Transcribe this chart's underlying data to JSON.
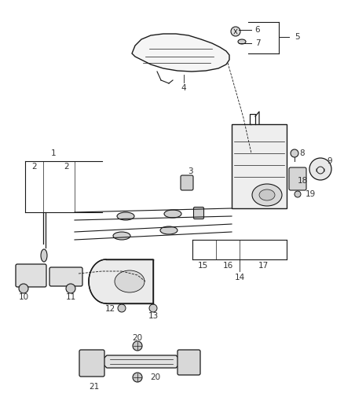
{
  "bg_color": "#ffffff",
  "line_color": "#1a1a1a",
  "figsize": [
    4.38,
    5.33
  ],
  "dpi": 100,
  "label_fontsize": 7.5,
  "label_color": "#333333",
  "lw": 1.0
}
